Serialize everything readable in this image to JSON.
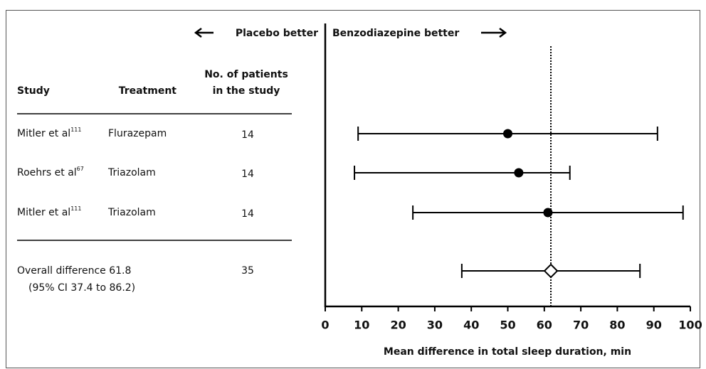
{
  "chart_data": {
    "type": "forest",
    "direction_labels": {
      "left": "Placebo better",
      "right": "Benzodiazepine better"
    },
    "x_label": "Mean difference in total sleep duration, min",
    "xlim": [
      0,
      100
    ],
    "xticks": [
      0,
      10,
      20,
      30,
      40,
      50,
      60,
      70,
      80,
      90,
      100
    ],
    "headers": {
      "study": "Study",
      "treatment": "Treatment",
      "patients": [
        "No. of patients",
        "in the study"
      ]
    },
    "studies": [
      {
        "study": "Mitler et al",
        "ref": "111",
        "treatment": "Flurazepam",
        "patients": 14,
        "estimate": 50,
        "lower": 9,
        "upper": 91
      },
      {
        "study": "Roehrs et al",
        "ref": "67",
        "treatment": "Triazolam",
        "patients": 14,
        "estimate": 53,
        "lower": 8,
        "upper": 67
      },
      {
        "study": "Mitler et al",
        "ref": "111",
        "treatment": "Triazolam",
        "patients": 14,
        "estimate": 61,
        "lower": 24,
        "upper": 98
      }
    ],
    "overall": {
      "label": "Overall difference 61.8",
      "ci_label": "(95% CI 37.4 to 86.2)",
      "patients": 35,
      "estimate": 61.8,
      "lower": 37.4,
      "upper": 86.2
    }
  }
}
